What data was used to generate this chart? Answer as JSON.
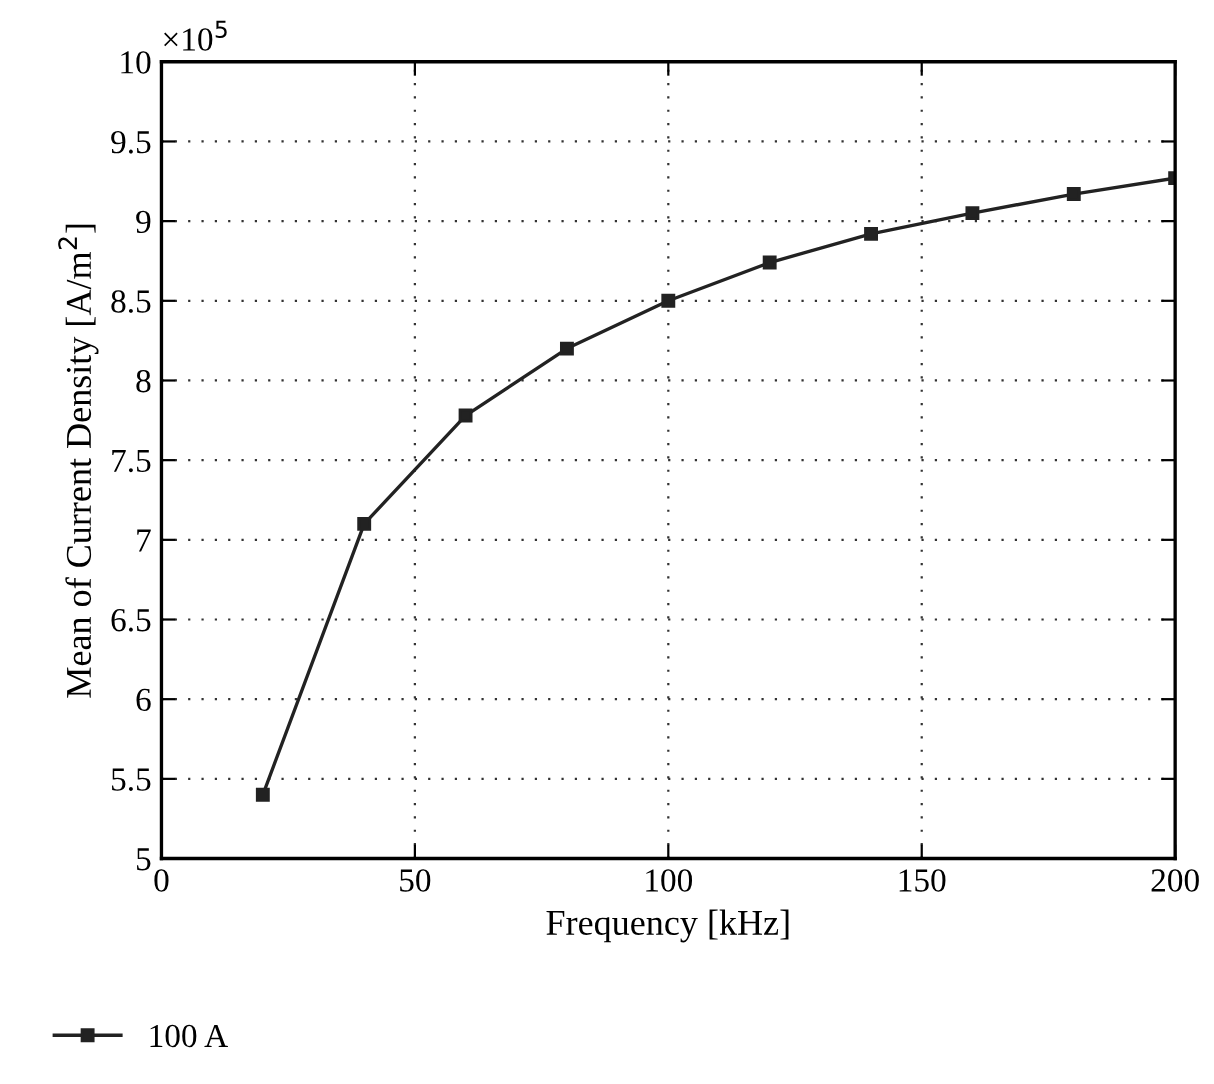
{
  "chart_data": {
    "type": "line",
    "xlabel": "Frequency [kHz]",
    "ylabel": "Mean of Current Density [A/m$^{2}$]",
    "annotations": [
      "×10$^{5}$"
    ],
    "x": [
      20,
      40,
      60,
      80,
      100,
      120,
      140,
      160,
      180,
      200
    ],
    "series": [
      {
        "name": "100 A",
        "color": "#222222",
        "values": [
          5.4,
          7.1,
          7.78,
          8.2,
          8.5,
          8.74,
          8.92,
          9.05,
          9.17,
          9.27
        ]
      }
    ],
    "xlim": [
      0,
      200
    ],
    "xticks": [
      0,
      50,
      100,
      150,
      200
    ],
    "ylim": [
      5,
      10
    ],
    "yticks": [
      5,
      5.5,
      6,
      6.5,
      7,
      7.5,
      8,
      8.5,
      9,
      9.5,
      10
    ],
    "grid": true,
    "legend": "bottom left",
    "marker": "square",
    "line_style": "solid"
  }
}
